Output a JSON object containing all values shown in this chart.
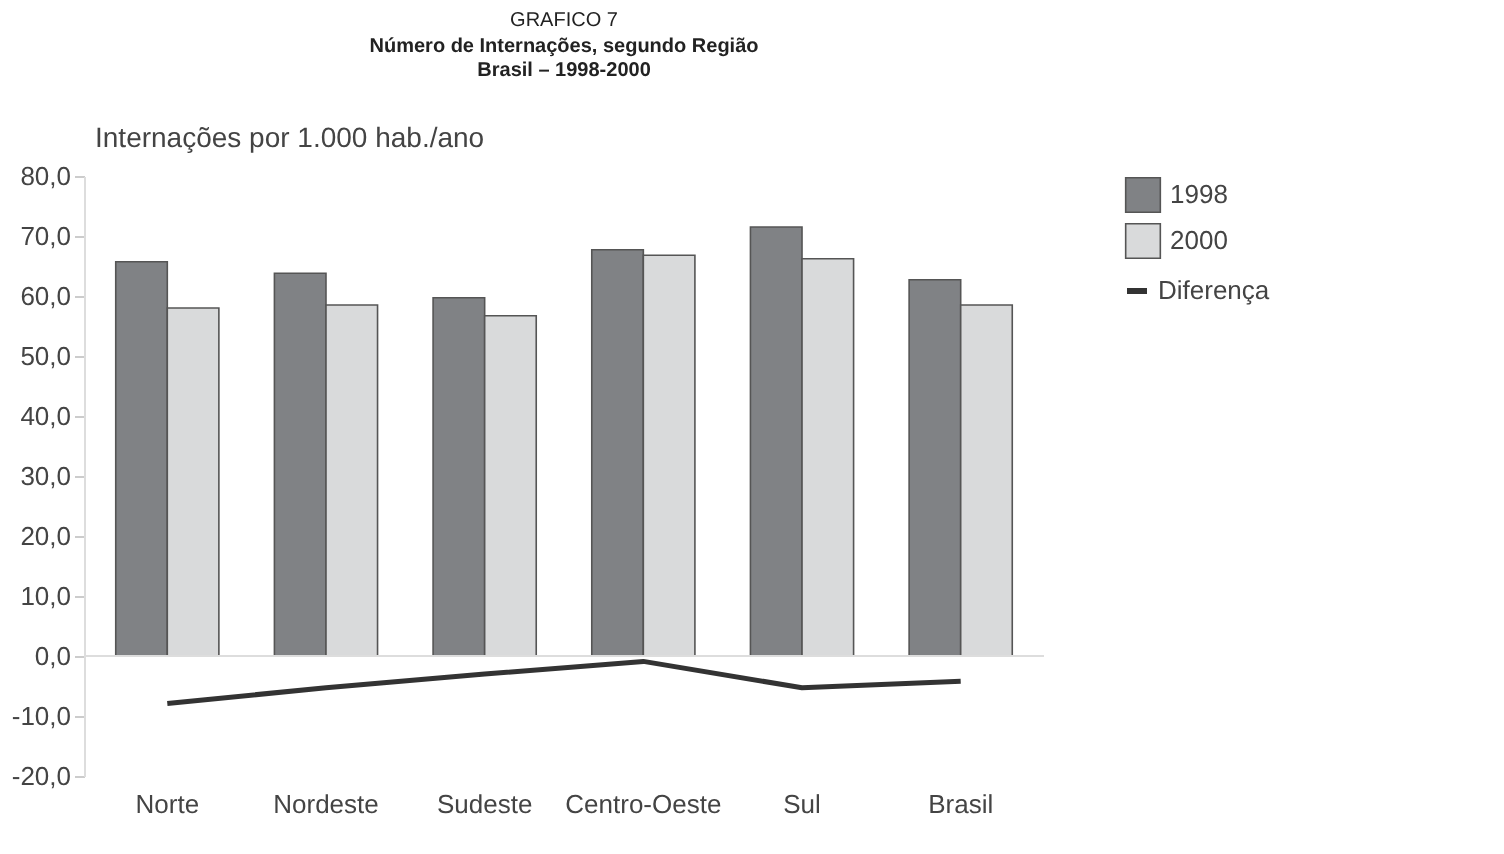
{
  "chart_data": {
    "type": "bar",
    "title": "GRAFICO 7",
    "subtitle": [
      "Número de Internações, segundo Região",
      "Brasil – 1998-2000"
    ],
    "ylabel": "Internações por 1.000 hab./ano",
    "categories": [
      "Norte",
      "Nordeste",
      "Sudeste",
      "Centro-Oeste",
      "Sul",
      "Brasil"
    ],
    "series": [
      {
        "name": "1998",
        "color": "#808285",
        "values": [
          65.7,
          63.8,
          59.7,
          67.7,
          71.5,
          62.7
        ]
      },
      {
        "name": "2000",
        "color": "#d9dadb",
        "values": [
          58.0,
          58.5,
          56.7,
          66.8,
          66.2,
          58.5
        ]
      },
      {
        "name": "Diferença",
        "type": "line",
        "color": "#333333",
        "values": [
          -7.9,
          -5.3,
          -3.0,
          -0.9,
          -5.3,
          -4.2
        ]
      }
    ],
    "ylim": [
      -20,
      80
    ],
    "yticks": [
      {
        "value": -20,
        "label": "-20,0"
      },
      {
        "value": -10,
        "label": "-10,0"
      },
      {
        "value": 0,
        "label": "0,0"
      },
      {
        "value": 10,
        "label": "10,0"
      },
      {
        "value": 20,
        "label": "20,0"
      },
      {
        "value": 30,
        "label": "30,0"
      },
      {
        "value": 40,
        "label": "40,0"
      },
      {
        "value": 50,
        "label": "50,0"
      },
      {
        "value": 60,
        "label": "60,0"
      },
      {
        "value": 70,
        "label": "70,0"
      },
      {
        "value": 80,
        "label": "80,0"
      }
    ],
    "ref_lines": [
      {
        "axis": "y",
        "value": 0,
        "color": "#dddddd"
      }
    ],
    "grid": false,
    "legend": "right",
    "marker": "none",
    "line_style": "solid"
  }
}
